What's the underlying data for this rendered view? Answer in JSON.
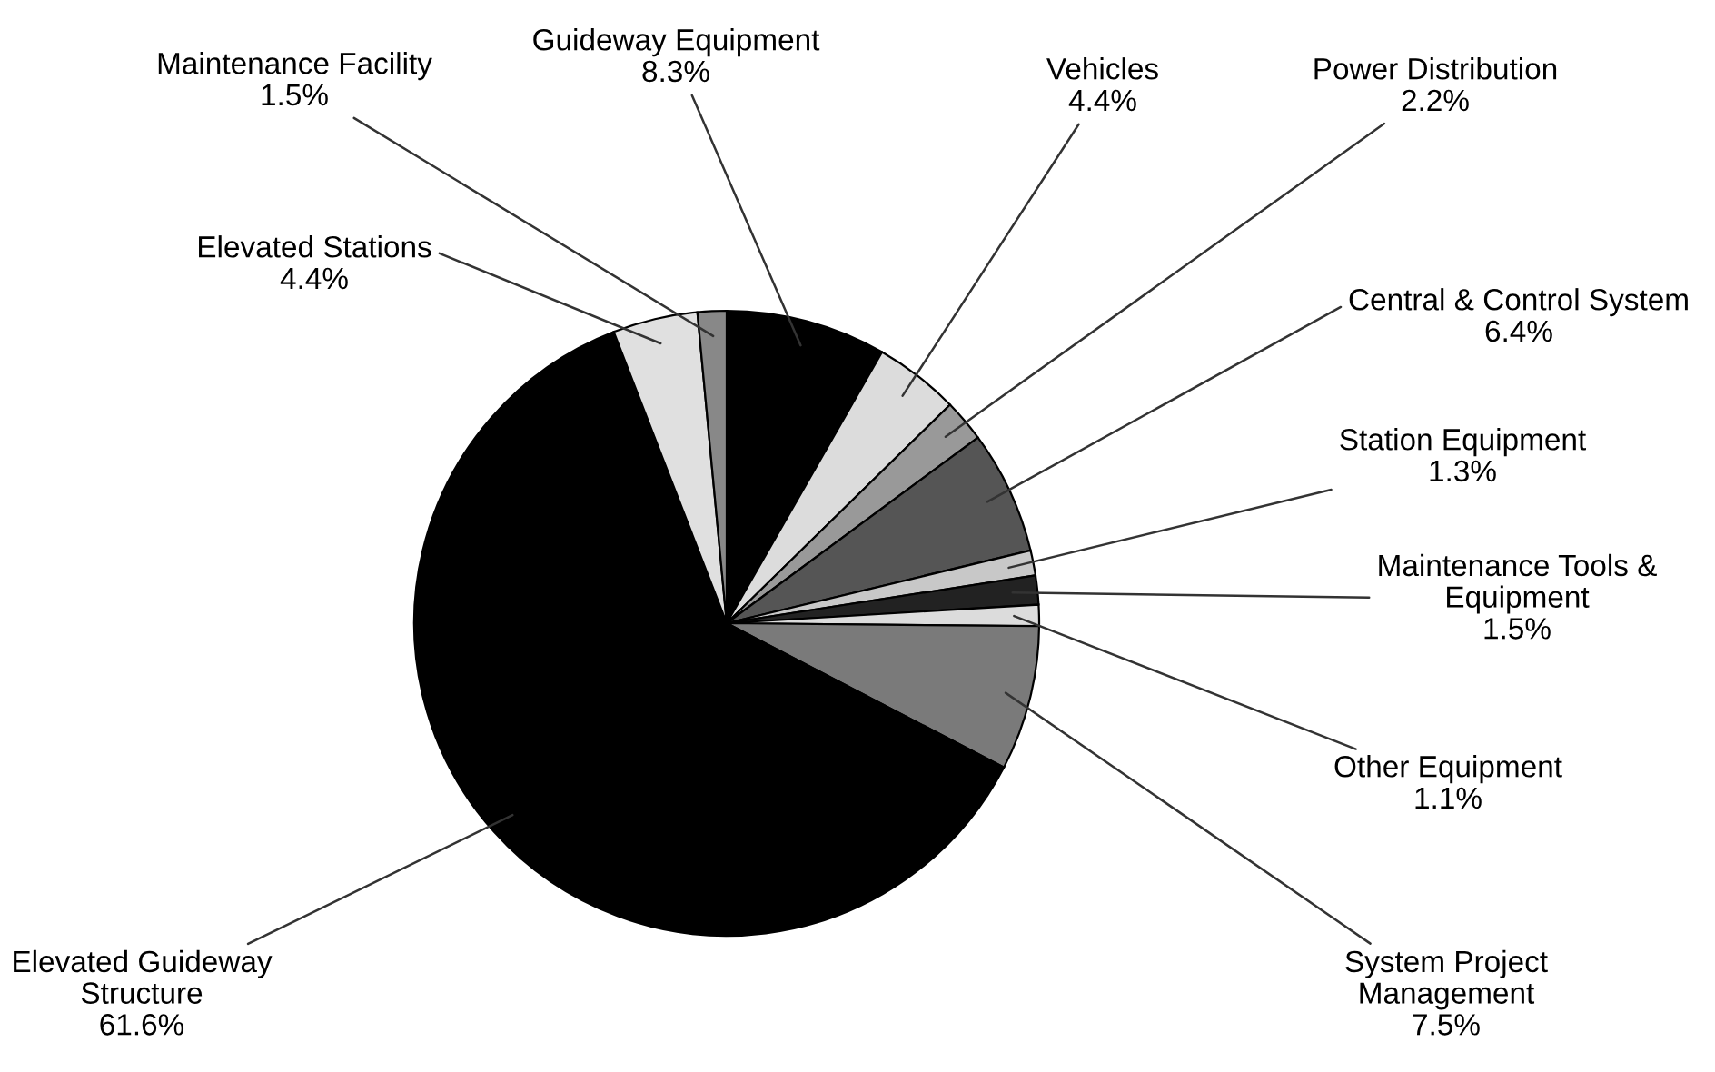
{
  "chart_data": {
    "type": "pie",
    "categories": [
      "Guideway Equipment",
      "Vehicles",
      "Power Distribution",
      "Central & Control System",
      "Station Equipment",
      "Maintenance Tools & Equipment",
      "Other Equipment",
      "System Project Management",
      "Elevated Guideway Structure",
      "Elevated Stations",
      "Maintenance Facility"
    ],
    "values": [
      8.3,
      4.4,
      2.2,
      6.4,
      1.3,
      1.5,
      1.1,
      7.5,
      61.6,
      4.4,
      1.5
    ],
    "value_labels": [
      "8.3%",
      "4.4%",
      "2.2%",
      "6.4%",
      "1.3%",
      "1.5%",
      "1.1%",
      "7.5%",
      "61.6%",
      "4.4%",
      "1.5%"
    ],
    "colors": [
      "#000000",
      "#dcdcdc",
      "#999999",
      "#555555",
      "#c8c8c8",
      "#222222",
      "#dcdcdc",
      "#7a7a7a",
      "#000000",
      "#e0e0e0",
      "#888888"
    ]
  }
}
